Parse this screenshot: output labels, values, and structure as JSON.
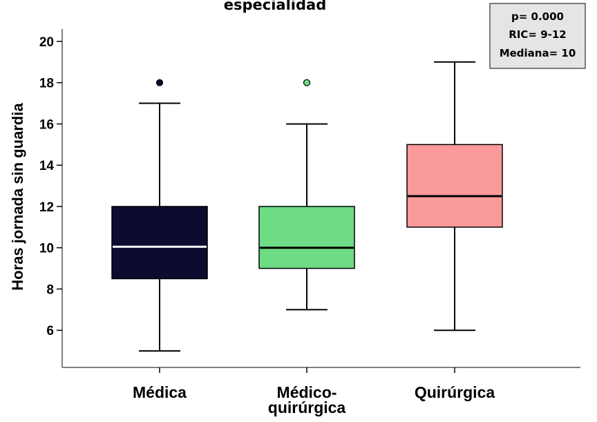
{
  "chart_data": {
    "type": "boxplot",
    "title": "especialidad",
    "xlabel": "",
    "ylabel": "Horas jornada sin guardia",
    "ylim": [
      4.2,
      20.6
    ],
    "yticks": [
      6,
      8,
      10,
      12,
      14,
      16,
      18,
      20
    ],
    "ytick_labels": [
      "6",
      "8",
      "10",
      "12",
      "14",
      "16",
      "18",
      "20"
    ],
    "grid": false,
    "categories": [
      {
        "label": "Médica",
        "lines": [
          "Médica"
        ]
      },
      {
        "label": "Médico-quirúrgica",
        "lines": [
          "Médico-",
          "quirúrgica"
        ]
      },
      {
        "label": "Quirúrgica",
        "lines": [
          "Quirúrgica"
        ]
      }
    ],
    "boxes": [
      {
        "category": "Médica",
        "whisker_low": 5,
        "q1": 8.5,
        "median": 10.05,
        "q3": 12,
        "whisker_high": 17,
        "outliers": [
          18
        ],
        "fill": "#0b0c30",
        "median_color": "#ffffff"
      },
      {
        "category": "Médico-quirúrgica",
        "whisker_low": 7,
        "q1": 9,
        "median": 10,
        "q3": 12,
        "whisker_high": 16,
        "outliers": [
          18
        ],
        "fill": "#6ddc85",
        "median_color": "#000000"
      },
      {
        "category": "Quirúrgica",
        "whisker_low": 6,
        "q1": 11,
        "median": 12.5,
        "q3": 15,
        "whisker_high": 19,
        "outliers": [],
        "fill": "#fb9a9a",
        "median_color": "#000000"
      }
    ],
    "annotations": [
      "p= 0.000",
      "RIC= 9-12",
      "Mediana= 10"
    ],
    "annotation_box_fill": "#e5e5e5"
  }
}
